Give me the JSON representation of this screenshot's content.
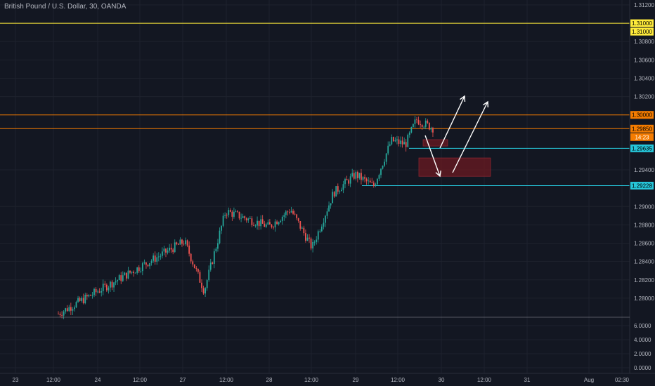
{
  "header": {
    "title": "British Pound / U.S. Dollar, 30, OANDA"
  },
  "colors": {
    "background": "#131722",
    "grid": "#1e222d",
    "text": "#b2b5be",
    "up": "#26a69a",
    "down": "#ef5350",
    "yellow_line": "#ffeb3b",
    "orange_line": "#f57c00",
    "cyan_line": "#26c6da",
    "zone": "#6b1a22",
    "arrows": "#ffffff"
  },
  "chart_data": {
    "type": "candlestick",
    "symbol": "British Pound / U.S. Dollar",
    "interval": "30",
    "exchange": "OANDA",
    "price_axis": {
      "range": [
        1.278,
        1.312
      ],
      "ticks": [
        "1.31200",
        "1.30800",
        "1.30600",
        "1.30400",
        "1.30200",
        "1.29400",
        "1.29000",
        "1.28800",
        "1.28600",
        "1.28400",
        "1.28200",
        "1.28000"
      ]
    },
    "volume_axis": {
      "ticks": [
        "6.0000",
        "4.0000",
        "2.0000",
        "0.0000"
      ]
    },
    "time_axis": {
      "ticks": [
        "23",
        "12:00",
        "24",
        "12:00",
        "27",
        "12:00",
        "28",
        "12:00",
        "29",
        "12:00",
        "30",
        "12:00",
        "31",
        "Aug",
        "02:30"
      ]
    },
    "horizontal_levels": [
      {
        "price": 1.31,
        "label": "1.31000",
        "color": "yellow"
      },
      {
        "price": 1.31,
        "label": "1.31000",
        "color": "yellow"
      },
      {
        "price": 1.3,
        "label": "1.30000",
        "color": "orange"
      },
      {
        "price": 1.2985,
        "label": "1.29850",
        "color": "orange"
      },
      {
        "price": 1.29635,
        "label": "1.29635",
        "color": "cyan"
      },
      {
        "price": 1.29228,
        "label": "1.29228",
        "color": "cyan"
      }
    ],
    "countdown": "14:23",
    "key_points": [
      {
        "time": "23 12:00",
        "price": 1.2783
      },
      {
        "time": "27 00:30",
        "price": 1.2862
      },
      {
        "time": "27 06:00",
        "price": 1.2808
      },
      {
        "time": "27 12:00",
        "price": 1.2895
      },
      {
        "time": "28 00:00",
        "price": 1.2878
      },
      {
        "time": "28 06:00",
        "price": 1.2897
      },
      {
        "time": "28 12:00",
        "price": 1.2855
      },
      {
        "time": "28 18:00",
        "price": 1.2915
      },
      {
        "time": "29 00:00",
        "price": 1.2935
      },
      {
        "time": "29 05:00",
        "price": 1.2922
      },
      {
        "time": "29 10:00",
        "price": 1.2972
      },
      {
        "time": "29 14:00",
        "price": 1.2968
      },
      {
        "time": "29 17:00",
        "price": 1.2995
      },
      {
        "time": "29 22:00",
        "price": 1.2985
      }
    ],
    "annotations": [
      {
        "type": "zone",
        "price_top": 1.2973,
        "price_bottom": 1.2966
      },
      {
        "type": "zone",
        "price_top": 1.2953,
        "price_bottom": 1.2933
      },
      {
        "type": "arrow",
        "direction": "down"
      },
      {
        "type": "arrow",
        "direction": "up"
      },
      {
        "type": "arrow",
        "direction": "up"
      }
    ],
    "legend": "none",
    "grid": true
  }
}
